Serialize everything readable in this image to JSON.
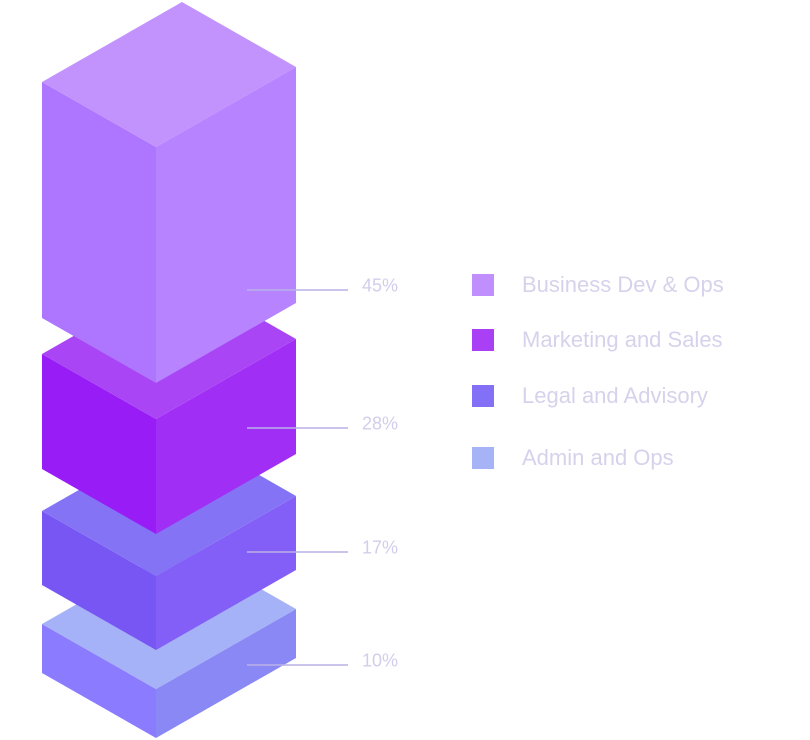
{
  "chart_data": {
    "type": "bar",
    "style": "isometric stacked blocks",
    "categories": [
      "Business Dev & Ops",
      "Marketing and Sales",
      "Legal and Advisory",
      "Admin and Ops"
    ],
    "values": [
      45,
      28,
      17,
      10
    ],
    "labels": [
      "45%",
      "28%",
      "17%",
      "10%"
    ],
    "unit": "%",
    "legend_position": "right",
    "colors": [
      "#c18ffd",
      "#aa40f5",
      "#8270f7",
      "#a6b4f7"
    ],
    "face_colors": [
      {
        "top": "#c393fd",
        "left": "#ae75ff",
        "right": "#b783ff"
      },
      {
        "top": "#a945f5",
        "left": "#981cf5",
        "right": "#a02ef5"
      },
      {
        "top": "#8474f5",
        "left": "#7856f3",
        "right": "#835ef7"
      },
      {
        "top": "#a6b2f7",
        "left": "#8b7cff",
        "right": "#8a88f4"
      }
    ]
  }
}
